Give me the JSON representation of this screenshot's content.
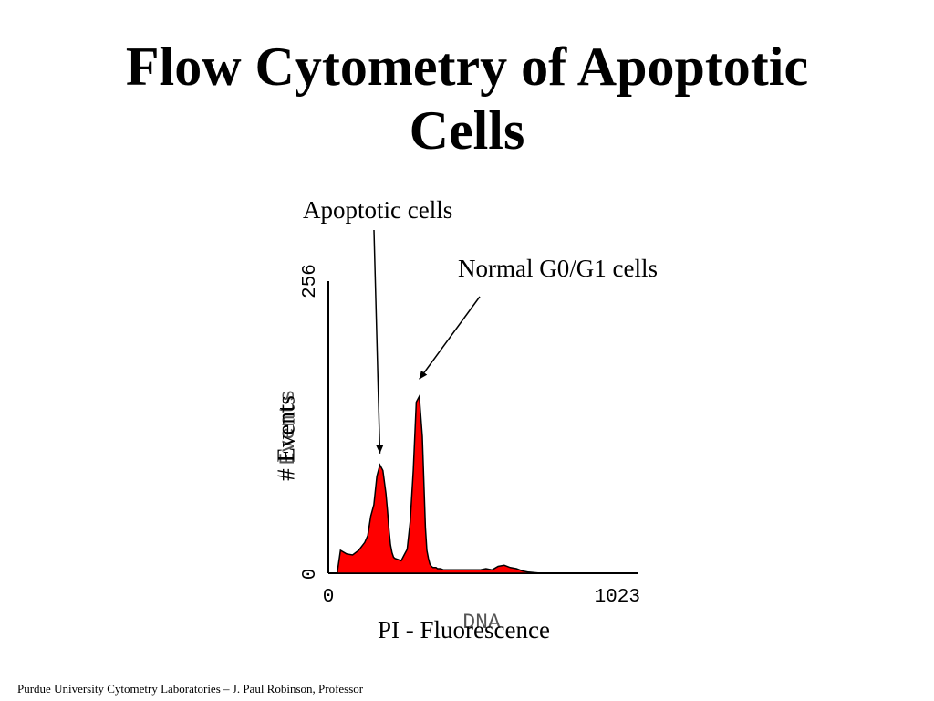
{
  "slide": {
    "title_line1": "Flow Cytometry of Apoptotic",
    "title_line2": "Cells",
    "footer": "Purdue University Cytometry Laboratories – J. Paul Robinson, Professor"
  },
  "annotations": {
    "apoptotic": "Apoptotic cells",
    "normal": "Normal G0/G1 cells"
  },
  "colors": {
    "fill": "#ff0000",
    "outline": "#000000"
  },
  "chart_data": {
    "type": "area",
    "xlabel": "PI - Fluorescence",
    "ylabel": "# Events",
    "xlabel_instrument": "DNA",
    "ylabel_instrument": "Events",
    "xlim": [
      0,
      1023
    ],
    "ylim": [
      0,
      256
    ],
    "x_ticks": [
      "0",
      "1023"
    ],
    "y_ticks": [
      "0",
      "256"
    ],
    "grid": false,
    "legend": "none",
    "series": [
      {
        "x": [
          30,
          40,
          60,
          80,
          100,
          120,
          130,
          140,
          150,
          160,
          170,
          180,
          190,
          195,
          200,
          205,
          210,
          215,
          220,
          230,
          240,
          250,
          260,
          270,
          280,
          290,
          300,
          310,
          315,
          320,
          325,
          330,
          335,
          340,
          345,
          350,
          355,
          360,
          370,
          380,
          400,
          420,
          440,
          460,
          480,
          500,
          520,
          540,
          560,
          580,
          600,
          620,
          640,
          660,
          700
        ],
        "y": [
          2,
          20,
          17,
          16,
          20,
          27,
          33,
          50,
          60,
          85,
          95,
          90,
          70,
          55,
          38,
          25,
          18,
          14,
          13,
          12,
          11,
          16,
          21,
          45,
          90,
          150,
          155,
          120,
          80,
          40,
          20,
          13,
          8,
          6,
          5,
          5,
          5,
          4,
          4,
          3,
          3,
          3,
          3,
          3,
          3,
          3,
          4,
          3,
          6,
          7,
          5,
          4,
          2,
          1,
          0
        ]
      }
    ],
    "annotations": [
      {
        "text": "Apoptotic cells",
        "x": 170,
        "y": 105
      },
      {
        "text": "Normal G0/G1 cells",
        "x": 300,
        "y": 170
      }
    ]
  }
}
